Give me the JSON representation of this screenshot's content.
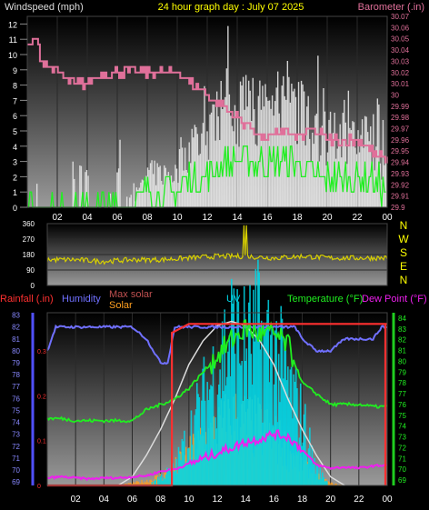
{
  "colors": {
    "background": "#000000",
    "plot_gradient_top": "#000000",
    "plot_gradient_bottom": "#9a9a9a",
    "wind_speed": "#e6e6e6",
    "wind_gust": "#e6e6e6",
    "wind_avg": "#22ee22",
    "barometer": "#e0709a",
    "wind_direction": "#d8d000",
    "title": "#ffff00",
    "rainfall": "#ff3030",
    "humidity": "#7070ff",
    "max_solar": "#dddddd",
    "solar": "#ffa020",
    "uv": "#00d8e8",
    "temperature": "#20ee20",
    "dew_point": "#ee20ee"
  },
  "top_panel": {
    "title": "24 hour graph day : July 07 2025",
    "left_axis_label": "Windspeed (mph)",
    "right_axis_label": "Barometer (.in)",
    "left_ticks": [
      "0",
      "1",
      "2",
      "3",
      "4",
      "5",
      "6",
      "7",
      "8",
      "9",
      "10",
      "11",
      "12"
    ],
    "right_ticks": [
      "29.9",
      "29.91",
      "29.92",
      "29.93",
      "29.94",
      "29.95",
      "29.96",
      "29.97",
      "29.98",
      "29.99",
      "30",
      "30.01",
      "30.02",
      "30.03",
      "30.04",
      "30.05",
      "30.06",
      "30.07"
    ],
    "x_ticks": [
      "02",
      "04",
      "06",
      "08",
      "10",
      "12",
      "14",
      "16",
      "18",
      "20",
      "22",
      "00"
    ]
  },
  "direction_panel": {
    "left_ticks": [
      "360",
      "270",
      "180",
      "90",
      "0"
    ],
    "compass": [
      "N",
      "W",
      "S",
      "E",
      "N"
    ]
  },
  "bottom_panel": {
    "labels": {
      "rainfall": "Rainfall (.in)",
      "humidity": "Humidity",
      "max_solar": "Max solar",
      "solar": "Solar",
      "uv": "UV",
      "temperature": "Temperature (°F)",
      "dew_point": "Dew Point (°F)"
    },
    "humidity_ticks": [
      "69",
      "70",
      "71",
      "72",
      "73",
      "74",
      "75",
      "76",
      "77",
      "78",
      "79",
      "80",
      "81",
      "82",
      "83"
    ],
    "rain_ticks": [
      "0",
      "0.1",
      "0.2",
      "0.3"
    ],
    "temp_ticks": [
      "69",
      "70",
      "71",
      "72",
      "73",
      "74",
      "75",
      "76",
      "77",
      "78",
      "79",
      "80",
      "81",
      "82",
      "83",
      "84"
    ],
    "x_ticks": [
      "02",
      "04",
      "06",
      "08",
      "10",
      "12",
      "14",
      "16",
      "18",
      "20",
      "22",
      "00"
    ]
  },
  "chart_data": [
    {
      "type": "line",
      "panel": "wind_and_barometer",
      "x_unit": "hour",
      "xlim": [
        0,
        24
      ],
      "ylim_left": [
        0,
        12.5
      ],
      "ylim_right": [
        29.9,
        30.07
      ],
      "series": [
        {
          "name": "Windspeed (mph)",
          "x": [
            0,
            1,
            2,
            3,
            4,
            5,
            6,
            7,
            8,
            9,
            10,
            11,
            12,
            13,
            14,
            15,
            16,
            17,
            18,
            19,
            20,
            21,
            22,
            23,
            24
          ],
          "values": [
            0,
            0,
            0,
            0,
            0,
            0,
            0,
            0,
            1,
            1,
            1,
            2,
            2,
            3,
            3,
            3,
            3,
            3,
            3,
            2,
            2,
            2,
            2,
            2,
            1
          ]
        },
        {
          "name": "Barometer (.in)",
          "x": [
            0,
            0.5,
            1,
            2,
            3,
            4,
            5,
            6,
            7,
            8,
            9,
            10,
            11,
            12,
            13,
            14,
            15,
            16,
            17,
            18,
            19,
            20,
            21,
            22,
            23,
            24
          ],
          "values": [
            30.04,
            30.05,
            30.03,
            30.02,
            30.01,
            30.01,
            30.02,
            30.02,
            30.02,
            30.02,
            30.02,
            30.02,
            30.01,
            30.0,
            29.99,
            29.98,
            29.97,
            29.96,
            29.97,
            29.96,
            29.97,
            29.96,
            29.96,
            29.96,
            29.95,
            29.94
          ]
        }
      ]
    },
    {
      "type": "line",
      "panel": "wind_direction",
      "xlim": [
        0,
        24
      ],
      "ylim": [
        0,
        360
      ],
      "series": [
        {
          "x": [
            0,
            2,
            4,
            6,
            8,
            10,
            12,
            14,
            16,
            18,
            20,
            22,
            24
          ],
          "values": [
            150,
            150,
            140,
            150,
            150,
            160,
            170,
            170,
            160,
            170,
            160,
            160,
            160
          ]
        }
      ]
    },
    {
      "type": "line",
      "panel": "rain_humidity_solar_uv_temperature_dewpoint",
      "xlim": [
        0,
        24
      ],
      "series": [
        {
          "name": "Humidity",
          "x": [
            0,
            0.3,
            0.6,
            2,
            4,
            6,
            7,
            7.5,
            8,
            8.5,
            9,
            10,
            11,
            12,
            13,
            14,
            15,
            16,
            17,
            17.5,
            18,
            19,
            20,
            21,
            22,
            23,
            23.6,
            24
          ],
          "values": [
            80,
            81,
            82,
            82,
            82,
            82,
            81,
            80,
            79,
            79,
            82,
            82,
            82,
            82,
            82,
            82,
            82,
            82,
            82,
            82,
            81,
            80,
            80,
            81,
            81,
            81,
            82,
            82
          ]
        },
        {
          "name": "Temperature (°F)",
          "x": [
            0,
            1,
            2,
            3,
            4,
            5,
            6,
            7,
            8,
            9,
            10,
            11,
            12,
            13,
            14,
            15,
            16,
            17,
            18,
            19,
            20,
            21,
            22,
            23,
            24
          ],
          "values": [
            74.7,
            74.7,
            74.5,
            74.5,
            74.5,
            74.5,
            74.5,
            75.5,
            76,
            76.5,
            77.5,
            79,
            80.5,
            82,
            83,
            82.5,
            82.5,
            81.5,
            78,
            77,
            76,
            76,
            76,
            75.8,
            75.8
          ]
        },
        {
          "name": "Dew Point (°F)",
          "x": [
            0,
            1,
            2,
            3,
            4,
            5,
            6,
            7,
            8,
            9,
            10,
            11,
            12,
            13,
            14,
            15,
            16,
            17,
            18,
            19,
            20,
            21,
            22,
            23,
            24
          ],
          "values": [
            69.2,
            69.3,
            69.2,
            69.1,
            69.2,
            69.2,
            69.3,
            69.4,
            69.8,
            70,
            70.5,
            71,
            71.5,
            72,
            72.5,
            72.8,
            73.3,
            73,
            71.8,
            70.4,
            70.1,
            70.2,
            70.1,
            70.3,
            70.4
          ]
        },
        {
          "name": "Rainfall (.in)",
          "x": [
            0,
            8.8,
            8.8,
            10,
            24
          ],
          "values": [
            0,
            0,
            0.34,
            0.36,
            0.36
          ]
        },
        {
          "name": "Max solar",
          "x": [
            5,
            6,
            7,
            8,
            9,
            10,
            11,
            12,
            13,
            14,
            15,
            16,
            17,
            18,
            19,
            20,
            21
          ],
          "values": [
            0,
            4,
            14,
            26,
            40,
            56,
            67,
            74,
            76,
            74,
            67,
            56,
            40,
            26,
            14,
            4,
            0
          ]
        },
        {
          "name": "Solar",
          "x": [
            5,
            6,
            7,
            8,
            9,
            10,
            11,
            12,
            13,
            14,
            15,
            16,
            17,
            18,
            19,
            20,
            21
          ],
          "values": [
            0,
            1,
            2,
            4,
            8,
            14,
            20,
            25,
            30,
            28,
            26,
            22,
            16,
            10,
            4,
            1,
            0
          ]
        },
        {
          "name": "UV",
          "x": [
            7,
            8,
            9,
            10,
            11,
            12,
            13,
            14,
            15,
            16,
            17,
            18,
            19,
            20
          ],
          "values": [
            0,
            0.5,
            1,
            3,
            5,
            7,
            9,
            8,
            9,
            8,
            6,
            4,
            1,
            0
          ]
        }
      ]
    }
  ]
}
